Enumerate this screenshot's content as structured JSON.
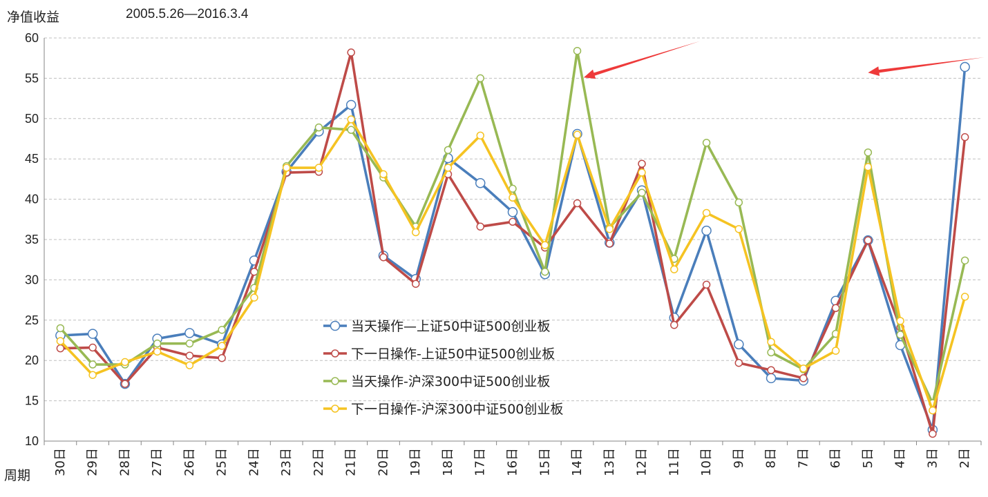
{
  "header": {
    "ylabel": "净值收益",
    "date_range": "2005.5.26—2016.3.4",
    "xlabel": "周期"
  },
  "chart_data": {
    "type": "line",
    "title": "",
    "ylabel": "净值收益",
    "xlabel": "周期",
    "ylim": [
      10,
      60
    ],
    "yticks": [
      10,
      15,
      20,
      25,
      30,
      35,
      40,
      45,
      50,
      55,
      60
    ],
    "grid": "horizontal-dashed",
    "legend_position": "center-left",
    "categories": [
      "30日",
      "29日",
      "28日",
      "27日",
      "26日",
      "25日",
      "24日",
      "23日",
      "22日",
      "21日",
      "20日",
      "19日",
      "18日",
      "17日",
      "16日",
      "15日",
      "14日",
      "13日",
      "12日",
      "11日",
      "10日",
      "9日",
      "8日",
      "7日",
      "6日",
      "5日",
      "4日",
      "3日",
      "2日"
    ],
    "series": [
      {
        "name": "当天操作—上证50中证500创业板",
        "color": "#4a7ebb",
        "values": [
          23.1,
          23.3,
          17.1,
          22.7,
          23.4,
          22.0,
          32.4,
          43.4,
          48.4,
          51.7,
          33.0,
          30.1,
          45.1,
          42.0,
          38.4,
          30.7,
          48.1,
          34.6,
          41.1,
          25.3,
          36.1,
          22.0,
          17.8,
          17.5,
          27.4,
          34.9,
          21.9,
          11.4,
          56.4
        ]
      },
      {
        "name": "下一日操作-上证50中证500创业板",
        "color": "#be4b48",
        "values": [
          21.5,
          21.6,
          17.1,
          21.6,
          20.6,
          20.3,
          31.0,
          43.3,
          43.4,
          58.2,
          32.8,
          29.5,
          43.1,
          36.6,
          37.2,
          34.0,
          39.5,
          34.5,
          44.4,
          24.4,
          29.4,
          19.7,
          18.8,
          17.8,
          26.5,
          34.9,
          24.1,
          10.9,
          47.7
        ]
      },
      {
        "name": "当天操作-沪深300中证500创业板",
        "color": "#98b954",
        "values": [
          24.0,
          19.5,
          19.5,
          22.1,
          22.1,
          23.8,
          29.0,
          44.1,
          48.9,
          48.6,
          42.7,
          36.6,
          46.1,
          55.0,
          41.3,
          31.0,
          58.4,
          36.5,
          40.8,
          32.6,
          47.0,
          39.6,
          21.0,
          18.9,
          23.3,
          45.8,
          23.2,
          14.7,
          32.4
        ]
      },
      {
        "name": "下一日操作-沪深300中证500创业板",
        "color": "#f5c322",
        "values": [
          22.4,
          18.2,
          19.8,
          21.1,
          19.4,
          21.8,
          27.8,
          43.9,
          43.9,
          49.9,
          43.1,
          35.9,
          43.9,
          47.9,
          40.2,
          34.3,
          48.0,
          36.3,
          43.3,
          31.3,
          38.3,
          36.3,
          22.3,
          19.0,
          21.2,
          44.0,
          24.9,
          13.8,
          27.9
        ]
      }
    ],
    "annotations": [
      {
        "type": "arrow",
        "color": "#ee3a3a",
        "from": [
          2.2,
          58.8
        ],
        "to": [
          21.1,
          56.2
        ]
      },
      {
        "type": "arrow",
        "color": "#ee3a3a",
        "from": [
          2.5,
          58.2
        ],
        "to": [
          14.3,
          56.8
        ]
      },
      {
        "type": "arrow",
        "color": "#ee3a3a",
        "from": [
          2.8,
          51.0
        ],
        "to": [
          10.3,
          46.5
        ]
      }
    ]
  }
}
